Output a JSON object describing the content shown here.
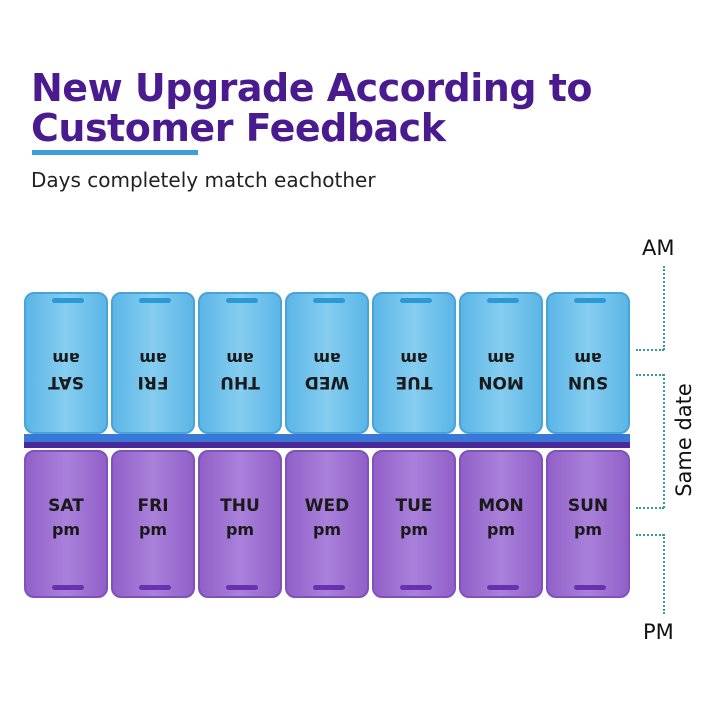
{
  "headline": {
    "line1": "New Upgrade According to",
    "line2": "Customer Feedback"
  },
  "subheadline": "Days completely match eachother",
  "colors": {
    "headline": "#4a1a8f",
    "accent_underline": "#3aa0dd",
    "am_lid": "#6cc0ea",
    "pm_lid": "#9a6ccf"
  },
  "am_row": [
    {
      "day": "SAT",
      "period": "am"
    },
    {
      "day": "FRI",
      "period": "am"
    },
    {
      "day": "THU",
      "period": "am"
    },
    {
      "day": "WED",
      "period": "am"
    },
    {
      "day": "TUE",
      "period": "am"
    },
    {
      "day": "MON",
      "period": "am"
    },
    {
      "day": "SUN",
      "period": "am"
    }
  ],
  "pm_row": [
    {
      "day": "SAT",
      "period": "pm"
    },
    {
      "day": "FRI",
      "period": "pm"
    },
    {
      "day": "THU",
      "period": "pm"
    },
    {
      "day": "WED",
      "period": "pm"
    },
    {
      "day": "TUE",
      "period": "pm"
    },
    {
      "day": "MON",
      "period": "pm"
    },
    {
      "day": "SUN",
      "period": "pm"
    }
  ],
  "annotations": {
    "am": "AM",
    "pm": "PM",
    "same_date": "Same date"
  }
}
